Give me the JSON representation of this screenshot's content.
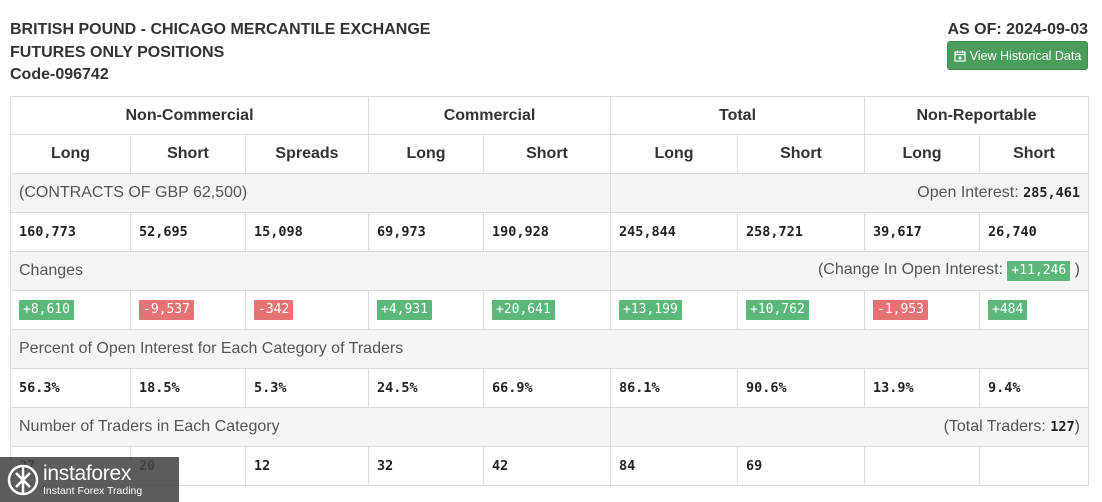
{
  "header": {
    "title_lines": [
      "BRITISH POUND - CHICAGO MERCANTILE EXCHANGE",
      "FUTURES ONLY POSITIONS",
      "Code-096742"
    ],
    "as_of": "AS OF: 2024-09-03",
    "button_label": "View Historical Data",
    "button_icon": "calendar-plus-icon"
  },
  "table": {
    "groups": [
      "Non-Commercial",
      "Commercial",
      "Total",
      "Non-Reportable"
    ],
    "subheaders": [
      "Long",
      "Short",
      "Spreads",
      "Long",
      "Short",
      "Long",
      "Short",
      "Long",
      "Short"
    ],
    "contracts_label": "(CONTRACTS OF GBP 62,500)",
    "open_interest_label": "Open Interest:",
    "open_interest_value": "285,461",
    "positions": [
      "160,773",
      "52,695",
      "15,098",
      "69,973",
      "190,928",
      "245,844",
      "258,721",
      "39,617",
      "26,740"
    ],
    "changes_label": "Changes",
    "change_oi_prefix": "(Change In Open Interest:",
    "change_oi_value": "+11,246",
    "change_oi_suffix": ")",
    "changes": [
      "+8,610",
      "-9,537",
      "-342",
      "+4,931",
      "+20,641",
      "+13,199",
      "+10,762",
      "-1,953",
      "+484"
    ],
    "percent_label": "Percent of Open Interest for Each Category of Traders",
    "percents": [
      "56.3%",
      "18.5%",
      "5.3%",
      "24.5%",
      "66.9%",
      "86.1%",
      "90.6%",
      "13.9%",
      "9.4%"
    ],
    "traders_label": "Number of Traders in Each Category",
    "total_traders_prefix": "(Total Traders:",
    "total_traders_value": "127",
    "total_traders_suffix": ")",
    "traders": [
      "27",
      "20",
      "12",
      "32",
      "42",
      "84",
      "69",
      "",
      ""
    ]
  },
  "colors": {
    "positive": "#5cb87a",
    "negative": "#e57373",
    "button": "#4a9d5b"
  },
  "logo": {
    "name": "instaforex",
    "tagline": "Instant Forex Trading"
  }
}
